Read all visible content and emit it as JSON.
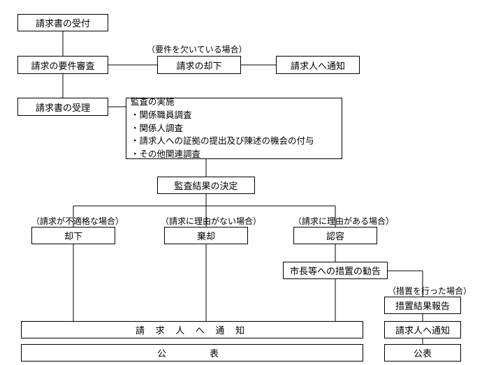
{
  "nodes": {
    "n1": "請求書の受付",
    "n2": "請求の要件審査",
    "n3_note": "（要件を欠いている場合）",
    "n3": "請求の却下",
    "n4": "請求人へ通知",
    "n5": "請求書の受理",
    "n6": "監査の実施\n・関係職員調査\n・関係人調査\n・請求人への証拠の提出及び陳述の機会の付与\n・その他関連調査",
    "n7": "監査結果の決定",
    "b1_note": "（請求が不適格な場合）",
    "b1": "却下",
    "b2_note": "（請求に理由がない場合）",
    "b2": "棄却",
    "b3_note": "（請求に理由がある場合）",
    "b3": "認容",
    "n8": "市長等への措置の勧告",
    "n9_note": "（措置を行った場合）",
    "n9": "措置結果報告",
    "n10": "請求人へ通知",
    "wide1": "請 求 人 へ 通 知",
    "wide2": "公　　表",
    "n11": "公表"
  },
  "style": {
    "border_color": "#000000",
    "bg": "#ffffff",
    "fontsize_box": 13,
    "fontsize_note": 12
  }
}
